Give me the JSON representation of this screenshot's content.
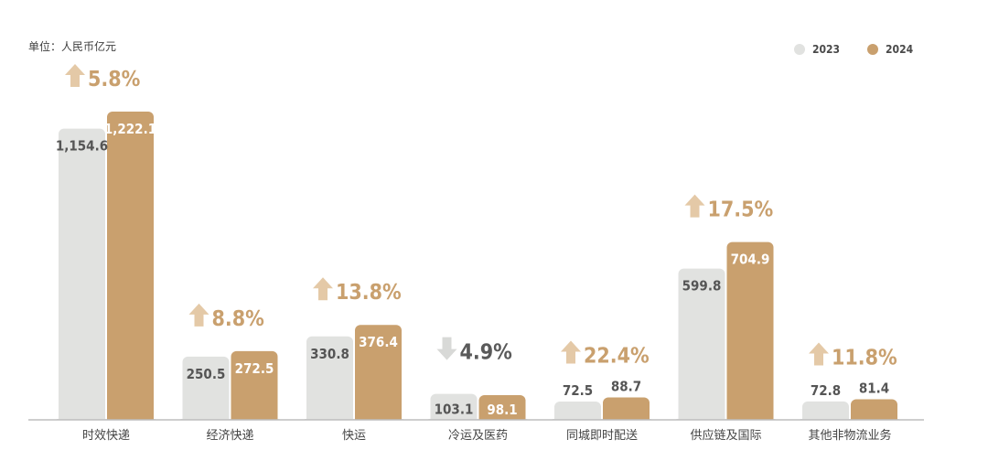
{
  "unit_label": "单位：人民币亿元",
  "legend": [
    {
      "name": "2023",
      "color": "#e1e2e0"
    },
    {
      "name": "2024",
      "color": "#c9a06e"
    }
  ],
  "colors": {
    "axis": "#bdbdbd",
    "up_arrow": "#e4c9a7",
    "down_arrow": "#d8d9d7",
    "up_text": "#c9a06e",
    "down_text": "#5a5a5a",
    "label_on_grey": "#555555",
    "label_on_gold": "#ffffff",
    "category_text": "#444444"
  },
  "chart_data": {
    "type": "bar",
    "categories": [
      "时效快递",
      "经济快递",
      "快运",
      "冷运及医药",
      "同城即时配送",
      "供应链及国际",
      "其他非物流业务"
    ],
    "series": [
      {
        "name": "2023",
        "values": [
          1154.6,
          250.5,
          330.8,
          103.1,
          72.5,
          599.8,
          72.8
        ]
      },
      {
        "name": "2024",
        "values": [
          1222.1,
          272.5,
          376.4,
          98.1,
          88.7,
          704.9,
          81.4
        ]
      }
    ],
    "value_labels": {
      "2023": [
        "1,154.6",
        "250.5",
        "330.8",
        "103.1",
        "72.5",
        "599.8",
        "72.8"
      ],
      "2024": [
        "1,222.1",
        "272.5",
        "376.4",
        "98.1",
        "88.7",
        "704.9",
        "81.4"
      ]
    },
    "changes": [
      {
        "text": "5.8%",
        "direction": "up"
      },
      {
        "text": "8.8%",
        "direction": "up"
      },
      {
        "text": "13.8%",
        "direction": "up"
      },
      {
        "text": "4.9%",
        "direction": "down"
      },
      {
        "text": "22.4%",
        "direction": "up"
      },
      {
        "text": "17.5%",
        "direction": "up"
      },
      {
        "text": "11.8%",
        "direction": "up"
      }
    ],
    "ylim": [
      0,
      1222.1
    ],
    "grid": false,
    "legend_position": "top-right"
  }
}
